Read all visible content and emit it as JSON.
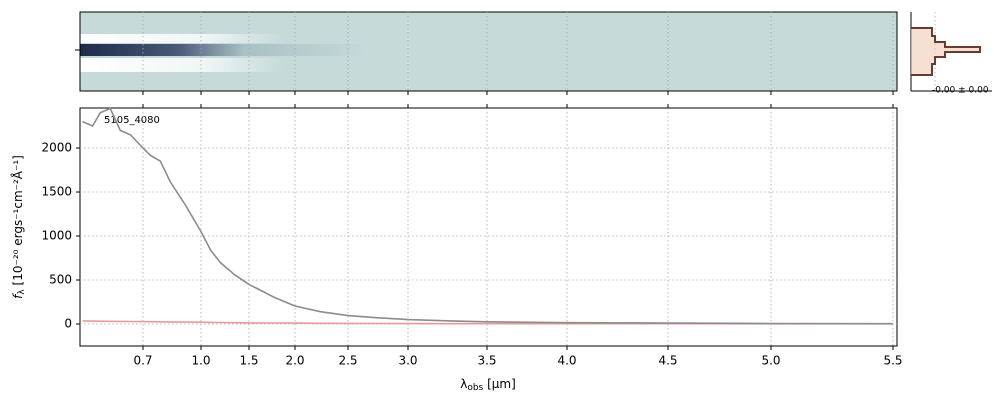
{
  "chart_data": {
    "type": "line",
    "annotation": "5105_4080",
    "profile_label": "-0.00 ± 0.00",
    "xlabel": {
      "symbol": "λ",
      "sub": "obs",
      "rest": " [μm]"
    },
    "ylabel": {
      "symbol": "f",
      "sub": "λ",
      "rest": " [10⁻²⁰ ergs⁻¹cm⁻²Å⁻¹]"
    },
    "x": [
      0.46,
      0.5,
      0.53,
      0.57,
      0.61,
      0.65,
      0.7,
      0.736,
      0.79,
      0.84,
      0.92,
      1.0,
      1.1,
      1.2,
      1.35,
      1.5,
      1.78,
      2.0,
      2.24,
      2.5,
      2.75,
      3.0,
      3.27,
      3.5,
      4.0,
      4.5,
      5.0,
      5.5
    ],
    "series": [
      {
        "name": "flux",
        "color": "#8c8c8c",
        "values": [
          2300,
          2250,
          2400,
          2450,
          2200,
          2150,
          2000,
          1920,
          1850,
          1620,
          1350,
          1050,
          840,
          700,
          560,
          450,
          300,
          205,
          140,
          95,
          70,
          50,
          35,
          25,
          15,
          10,
          6,
          3
        ]
      },
      {
        "name": "error",
        "color": "#e89a9a",
        "values": [
          35,
          33,
          32,
          31,
          30,
          29,
          27,
          26,
          25,
          24,
          22,
          20,
          18,
          17,
          15,
          13,
          11,
          10,
          8,
          7,
          6,
          5,
          4,
          4,
          3,
          3,
          2,
          2
        ]
      }
    ],
    "xlim": [
      0.45,
      5.52
    ],
    "xticks": [
      0.7,
      {
        "value": 1.0,
        "label": "1.0"
      },
      1.5,
      {
        "value": 2.0,
        "label": "2.0"
      },
      2.5,
      {
        "value": 3.0,
        "label": "3.0"
      },
      3.5,
      {
        "value": 4.0,
        "label": "4.0"
      },
      4.5,
      {
        "value": 5.0,
        "label": "5.0"
      },
      5.5
    ],
    "ylim": [
      -250,
      2455
    ],
    "yticks": [
      0,
      500,
      1000,
      1500,
      2000
    ],
    "grid": true
  }
}
